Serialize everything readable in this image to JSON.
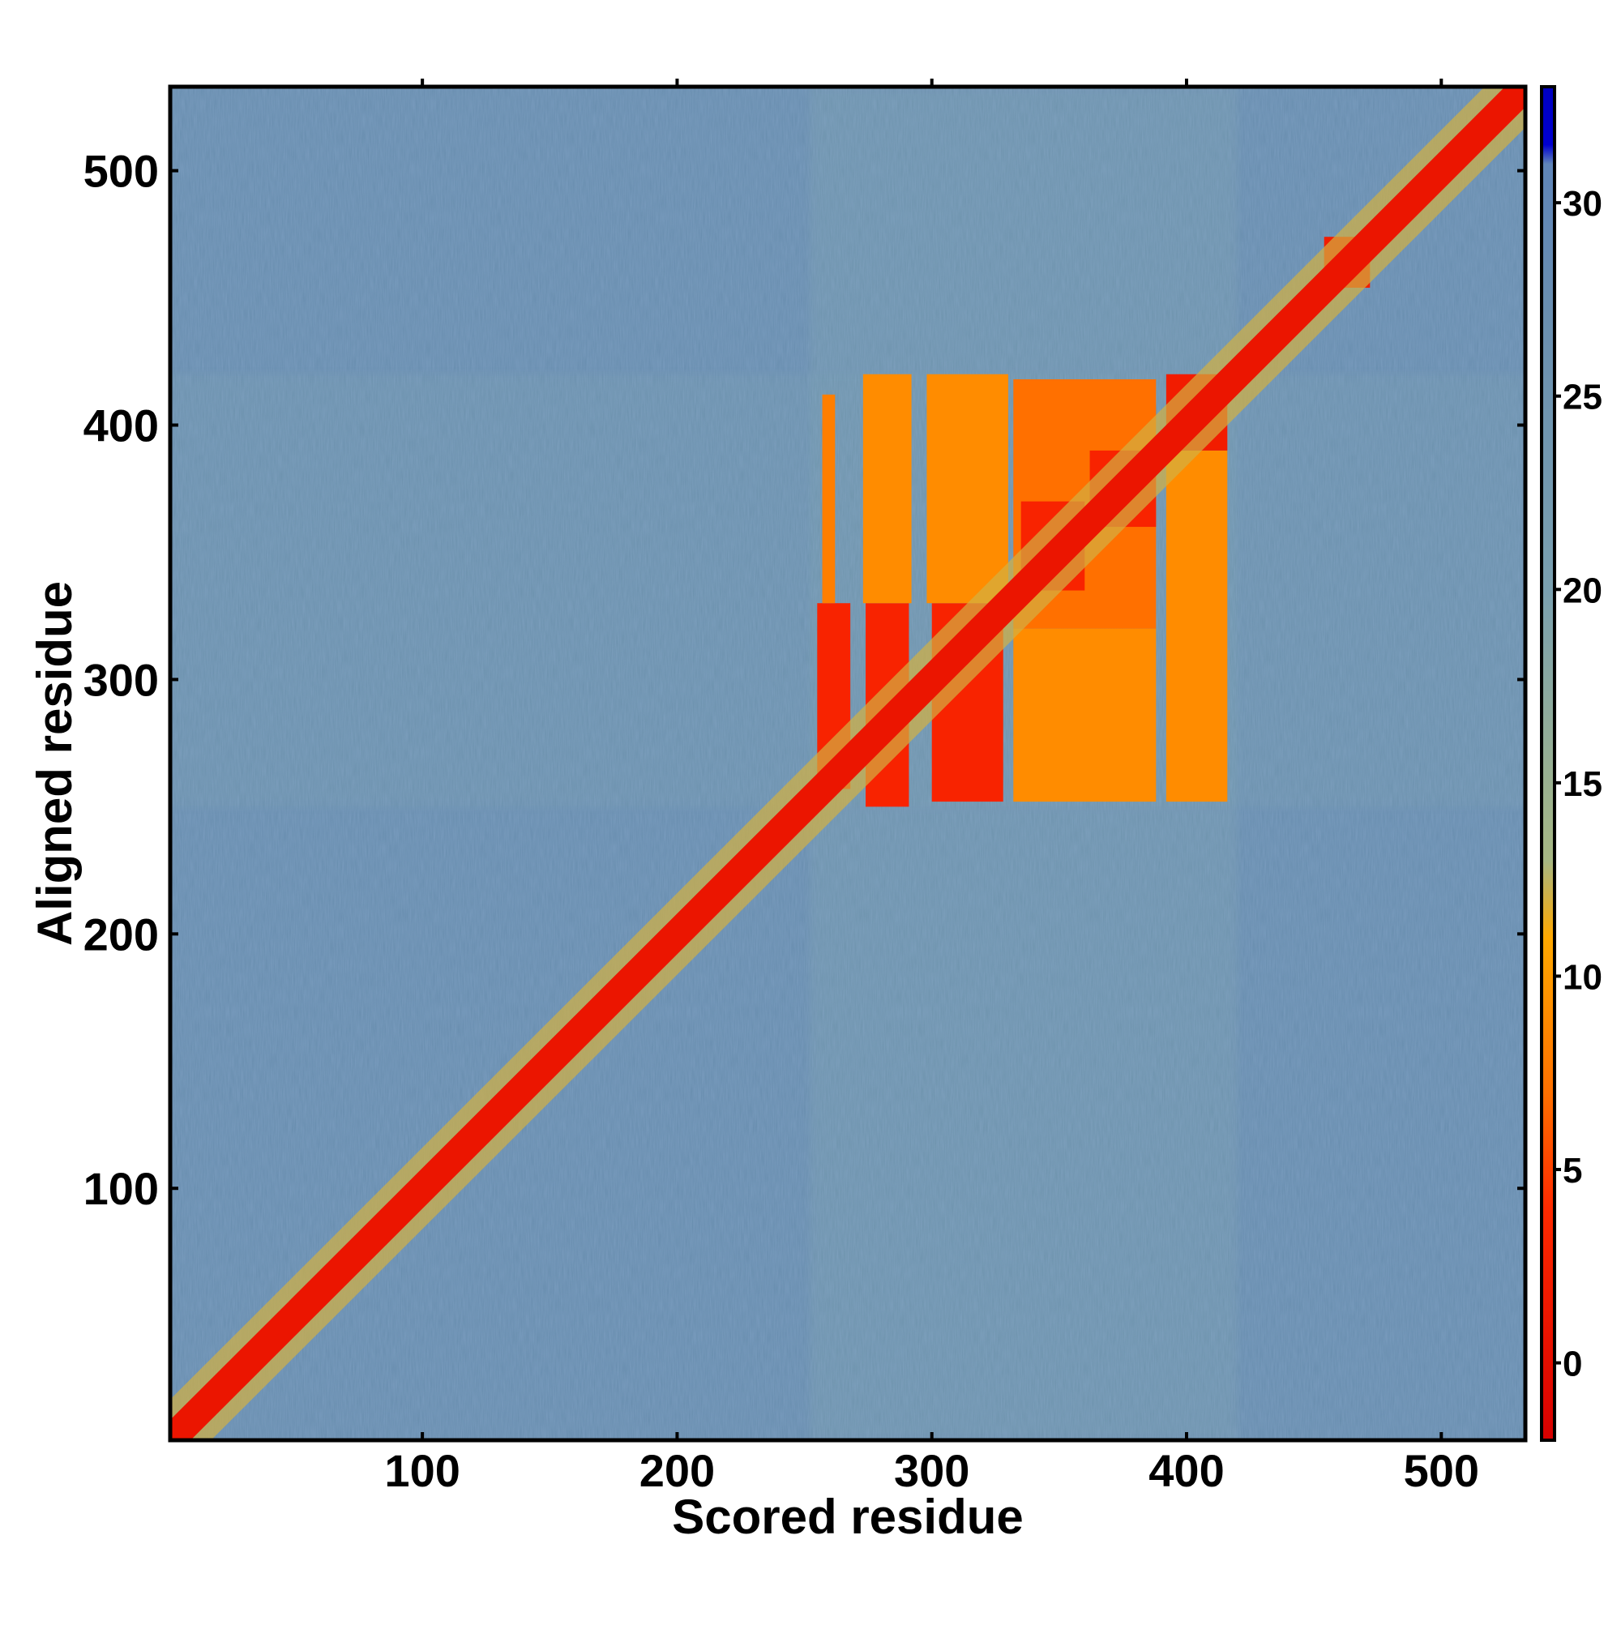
{
  "chart_data": {
    "type": "heatmap",
    "xlabel": "Scored residue",
    "ylabel": "Aligned residue",
    "xlim": [
      1,
      533
    ],
    "ylim": [
      1,
      533
    ],
    "x_ticks": [
      100,
      200,
      300,
      400,
      500
    ],
    "y_ticks": [
      100,
      200,
      300,
      400,
      500
    ],
    "colorbar": {
      "range": [
        -2,
        33
      ],
      "ticks": [
        0,
        5,
        10,
        15,
        20,
        25,
        30
      ],
      "stops": [
        {
          "value": -2,
          "color": "#d70000"
        },
        {
          "value": 4,
          "color": "#ff2a00"
        },
        {
          "value": 7,
          "color": "#ff7000"
        },
        {
          "value": 11,
          "color": "#ffa800"
        },
        {
          "value": 13,
          "color": "#a6b783"
        },
        {
          "value": 20,
          "color": "#7aa0b0"
        },
        {
          "value": 27,
          "color": "#6a8fb0"
        },
        {
          "value": 31,
          "color": "#5f85b8"
        },
        {
          "value": 31.5,
          "color": "#0000d0"
        },
        {
          "value": 33,
          "color": "#0000c0"
        }
      ]
    },
    "background_value": 27,
    "diagonal": {
      "value": 1,
      "half_width": 8
    },
    "blocks": [
      {
        "x": [
          255,
          268
        ],
        "y": [
          257,
          330
        ],
        "value": 3
      },
      {
        "x": [
          257,
          262
        ],
        "y": [
          330,
          412
        ],
        "value": 8
      },
      {
        "x": [
          274,
          291
        ],
        "y": [
          250,
          330
        ],
        "value": 3
      },
      {
        "x": [
          273,
          292
        ],
        "y": [
          330,
          420
        ],
        "value": 9
      },
      {
        "x": [
          300,
          328
        ],
        "y": [
          252,
          330
        ],
        "value": 3
      },
      {
        "x": [
          298,
          330
        ],
        "y": [
          330,
          420
        ],
        "value": 9
      },
      {
        "x": [
          332,
          388
        ],
        "y": [
          252,
          320
        ],
        "value": 9
      },
      {
        "x": [
          332,
          388
        ],
        "y": [
          320,
          418
        ],
        "value": 7
      },
      {
        "x": [
          335,
          360
        ],
        "y": [
          335,
          370
        ],
        "value": 3
      },
      {
        "x": [
          362,
          388
        ],
        "y": [
          360,
          390
        ],
        "value": 3
      },
      {
        "x": [
          392,
          416
        ],
        "y": [
          252,
          390
        ],
        "value": 9
      },
      {
        "x": [
          392,
          416
        ],
        "y": [
          390,
          420
        ],
        "value": 2
      },
      {
        "x": [
          454,
          472
        ],
        "y": [
          454,
          474
        ],
        "value": 2
      }
    ],
    "haze": [
      {
        "x": [
          252,
          420
        ],
        "y": [
          1,
          533
        ],
        "value": 20
      },
      {
        "x": [
          1,
          533
        ],
        "y": [
          250,
          420
        ],
        "value": 22
      }
    ]
  }
}
